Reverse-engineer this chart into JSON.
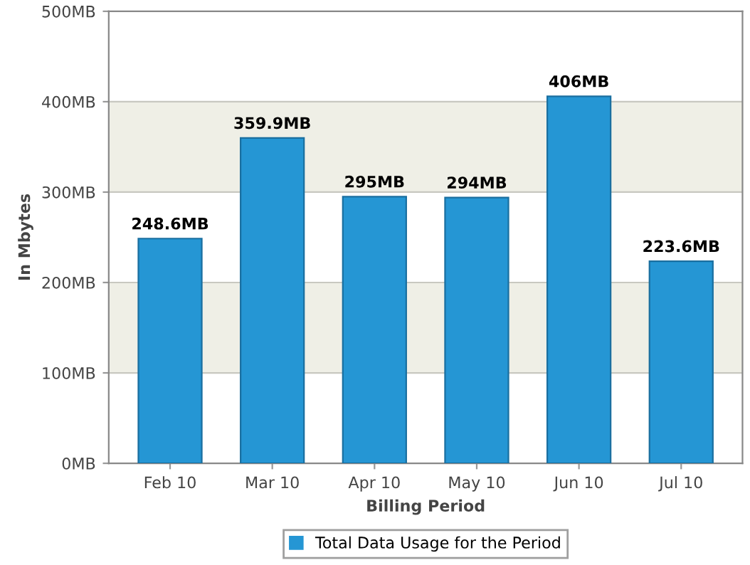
{
  "chart_data": {
    "type": "bar",
    "xlabel": "Billing Period",
    "ylabel": "In Mbytes",
    "categories": [
      "Feb 10",
      "Mar 10",
      "Apr 10",
      "May 10",
      "Jun 10",
      "Jul 10"
    ],
    "series": [
      {
        "name": "Total Data Usage for the Period",
        "color": "#2596d4",
        "values": [
          248.6,
          359.9,
          295,
          294,
          406,
          223.6
        ]
      }
    ],
    "value_labels": [
      "248.6MB",
      "359.9MB",
      "295MB",
      "294MB",
      "406MB",
      "223.6MB"
    ],
    "ylim": [
      0,
      500
    ],
    "yticks": [
      {
        "value": 0,
        "label": "0MB"
      },
      {
        "value": 100,
        "label": "100MB"
      },
      {
        "value": 200,
        "label": "200MB"
      },
      {
        "value": 300,
        "label": "300MB"
      },
      {
        "value": 400,
        "label": "400MB"
      },
      {
        "value": 500,
        "label": "500MB"
      }
    ],
    "bands": [
      {
        "axis": "y",
        "from": 100,
        "to": 200,
        "color": "#efefe6"
      },
      {
        "axis": "y",
        "from": 300,
        "to": 400,
        "color": "#efefe6"
      }
    ],
    "grid": "y",
    "legend": "bottom"
  }
}
